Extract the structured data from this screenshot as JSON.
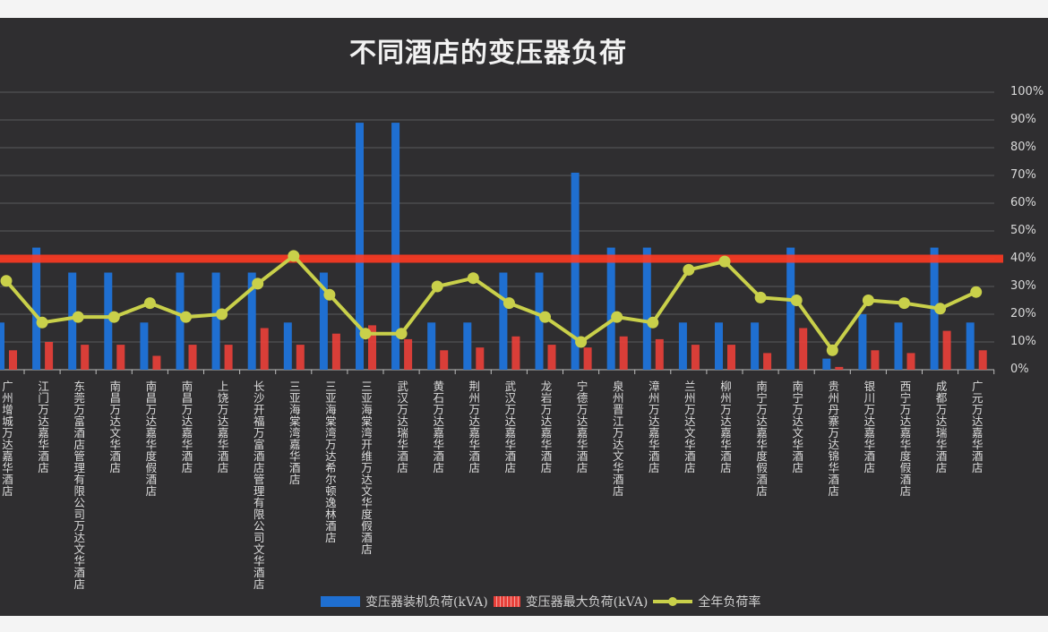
{
  "chart_data": {
    "type": "bar",
    "title": "不同酒店的变压器负荷",
    "categories": [
      "广州增城万达嘉华酒店",
      "江门万达嘉华酒店",
      "东莞万富酒店管理有限公司万达文华酒店",
      "南昌万达文华酒店",
      "南昌万达嘉华度假酒店",
      "南昌万达嘉华酒店",
      "上饶万达嘉华酒店",
      "长沙开福万富酒店管理有限公司文华酒店",
      "三亚海棠湾嘉华酒店",
      "三亚海棠湾万达希尔顿逸林酒店",
      "三亚海棠湾开维万达文华度假酒店",
      "武汉万达瑞华酒店",
      "黄石万达嘉华酒店",
      "荆州万达嘉华酒店",
      "武汉万达嘉华酒店",
      "龙岩万达嘉华酒店",
      "宁德万达嘉华酒店",
      "泉州晋江万达文华酒店",
      "漳州万达嘉华酒店",
      "兰州万达文华酒店",
      "柳州万达嘉华酒店",
      "南宁万达嘉华度假酒店",
      "南宁万达文华酒店",
      "贵州丹寨万达锦华酒店",
      "银川万达嘉华酒店",
      "西宁万达嘉华度假酒店",
      "成都万达瑞华酒店",
      "广元万达嘉华酒店"
    ],
    "series": [
      {
        "name": "变压器装机负荷(kVA)",
        "type": "bar",
        "color": "#1f6fd1",
        "values": [
          17,
          44,
          35,
          35,
          17,
          35,
          35,
          35,
          17,
          35,
          89,
          89,
          17,
          17,
          35,
          35,
          71,
          44,
          44,
          17,
          17,
          17,
          44,
          4,
          20,
          17,
          44,
          17
        ]
      },
      {
        "name": "变压器最大负荷(kVA)",
        "type": "bar",
        "color": "#e8403a",
        "values": [
          7,
          10,
          9,
          9,
          5,
          9,
          9,
          15,
          9,
          13,
          16,
          11,
          7,
          8,
          12,
          9,
          8,
          12,
          11,
          9,
          9,
          6,
          15,
          1,
          7,
          6,
          14,
          7
        ]
      },
      {
        "name": "全年负荷率",
        "type": "line",
        "color": "#c9d04a",
        "unit": "%",
        "values": [
          32,
          17,
          19,
          19,
          24,
          19,
          20,
          31,
          41,
          27,
          13,
          13,
          30,
          33,
          24,
          19,
          10,
          19,
          17,
          36,
          39,
          26,
          25,
          7,
          25,
          24,
          22,
          28
        ]
      }
    ],
    "reference_line": {
      "value": 40,
      "unit": "%",
      "color": "#ff3a22"
    },
    "y_right": {
      "ticks": [
        "0%",
        "10%",
        "20%",
        "30%",
        "40%",
        "50%",
        "60%",
        "70%",
        "80%",
        "90%",
        "100%"
      ],
      "range": [
        0,
        100
      ]
    },
    "grid": true,
    "legend_position": "bottom"
  }
}
